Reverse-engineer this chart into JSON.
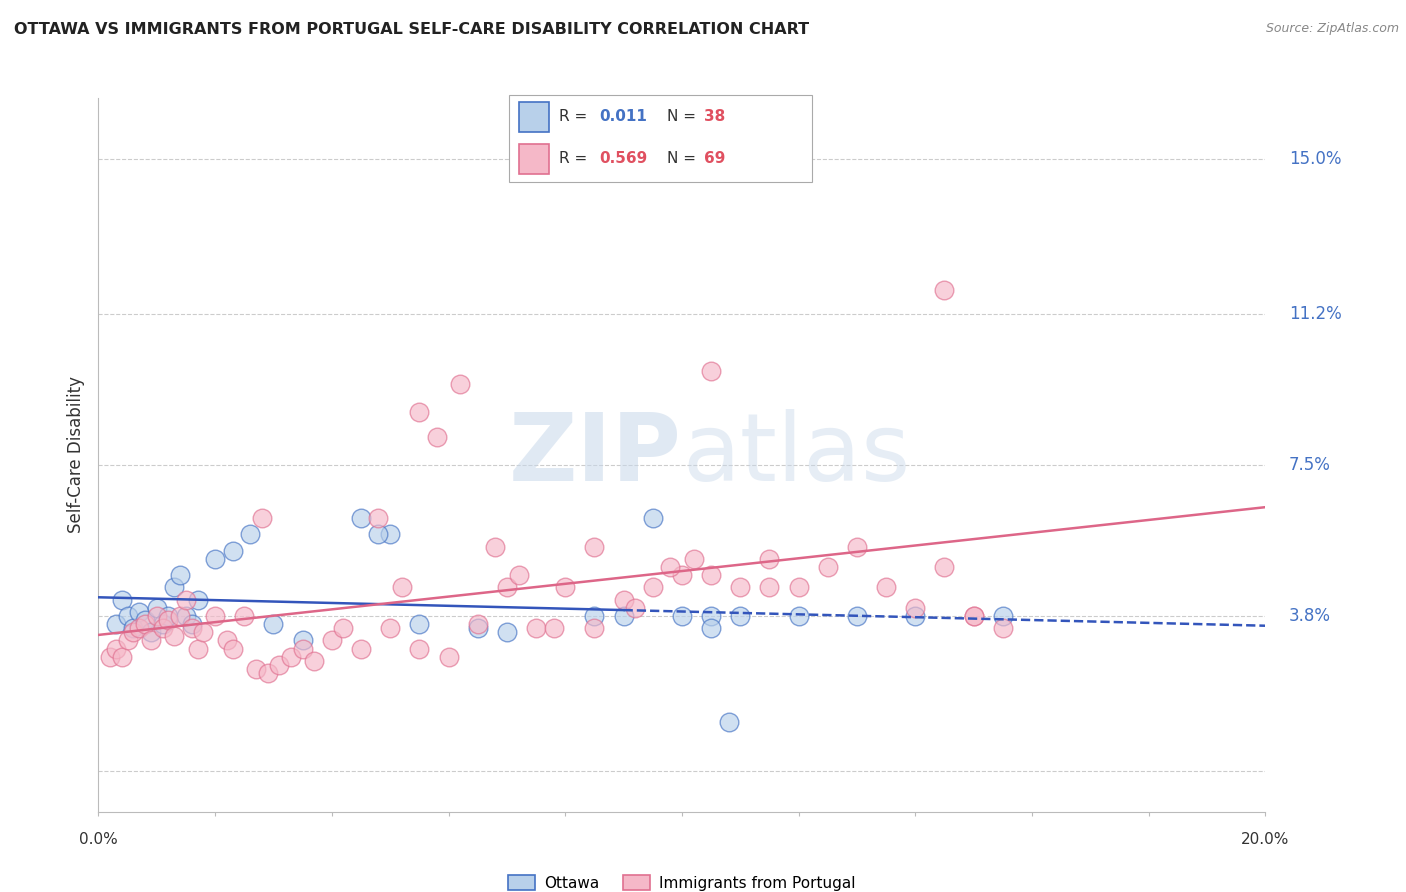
{
  "title": "OTTAWA VS IMMIGRANTS FROM PORTUGAL SELF-CARE DISABILITY CORRELATION CHART",
  "source": "Source: ZipAtlas.com",
  "ylabel": "Self-Care Disability",
  "xlim": [
    0.0,
    20.0
  ],
  "ylim": [
    -1.0,
    16.5
  ],
  "ytick_vals": [
    0.0,
    3.8,
    7.5,
    11.2,
    15.0
  ],
  "ytick_labels": [
    "",
    "3.8%",
    "7.5%",
    "11.2%",
    "15.0%"
  ],
  "grid_color": "#cccccc",
  "background_color": "#ffffff",
  "ottawa_fill_color": "#b8d0ea",
  "ottawa_edge_color": "#4472c4",
  "portugal_fill_color": "#f5b8c8",
  "portugal_edge_color": "#e07090",
  "ottawa_line_color": "#3355bb",
  "portugal_line_color": "#dd6688",
  "ytick_color": "#4472c4",
  "xtick_color": "#333333",
  "legend_ottawa_R": "0.011",
  "legend_ottawa_N": "38",
  "legend_portugal_R": "0.569",
  "legend_portugal_N": "69",
  "watermark": "ZIPatlas",
  "ottawa_scatter_x": [
    0.3,
    0.4,
    0.5,
    0.6,
    0.7,
    0.8,
    0.9,
    1.0,
    1.1,
    1.2,
    1.3,
    1.4,
    1.5,
    1.6,
    1.7,
    2.0,
    2.3,
    2.6,
    3.0,
    4.5,
    5.0,
    5.5,
    10.8,
    9.5,
    4.8,
    3.5,
    6.5,
    7.0,
    8.5,
    9.0,
    10.0,
    10.5,
    11.0,
    12.0,
    13.0,
    14.0,
    15.5,
    10.5
  ],
  "ottawa_scatter_y": [
    3.6,
    4.2,
    3.8,
    3.5,
    3.9,
    3.7,
    3.4,
    4.0,
    3.6,
    3.8,
    4.5,
    4.8,
    3.8,
    3.6,
    4.2,
    5.2,
    5.4,
    5.8,
    3.6,
    6.2,
    5.8,
    3.6,
    1.2,
    6.2,
    5.8,
    3.2,
    3.5,
    3.4,
    3.8,
    3.8,
    3.8,
    3.8,
    3.8,
    3.8,
    3.8,
    3.8,
    3.8,
    3.5
  ],
  "portugal_scatter_x": [
    0.2,
    0.3,
    0.4,
    0.5,
    0.6,
    0.7,
    0.8,
    0.9,
    1.0,
    1.1,
    1.2,
    1.3,
    1.4,
    1.5,
    1.6,
    1.7,
    1.8,
    2.0,
    2.2,
    2.3,
    2.5,
    2.7,
    2.9,
    3.1,
    3.3,
    3.5,
    3.7,
    4.0,
    4.2,
    4.5,
    4.8,
    5.0,
    5.2,
    5.5,
    6.0,
    6.5,
    7.0,
    7.5,
    8.0,
    8.5,
    9.0,
    9.5,
    10.0,
    10.5,
    11.0,
    11.5,
    12.0,
    12.5,
    13.0,
    14.0,
    14.5,
    15.0,
    15.5,
    5.5,
    5.8,
    6.2,
    7.2,
    7.8,
    8.5,
    9.2,
    10.2,
    11.5,
    14.5,
    10.5,
    6.8,
    9.8,
    13.5,
    2.8,
    15.0
  ],
  "portugal_scatter_y": [
    2.8,
    3.0,
    2.8,
    3.2,
    3.4,
    3.5,
    3.6,
    3.2,
    3.8,
    3.5,
    3.7,
    3.3,
    3.8,
    4.2,
    3.5,
    3.0,
    3.4,
    3.8,
    3.2,
    3.0,
    3.8,
    2.5,
    2.4,
    2.6,
    2.8,
    3.0,
    2.7,
    3.2,
    3.5,
    3.0,
    6.2,
    3.5,
    4.5,
    3.0,
    2.8,
    3.6,
    4.5,
    3.5,
    4.5,
    3.5,
    4.2,
    4.5,
    4.8,
    4.8,
    4.5,
    5.2,
    4.5,
    5.0,
    5.5,
    4.0,
    5.0,
    3.8,
    3.5,
    8.8,
    8.2,
    9.5,
    4.8,
    3.5,
    5.5,
    4.0,
    5.2,
    4.5,
    11.8,
    9.8,
    5.5,
    5.0,
    4.5,
    6.2,
    3.8
  ]
}
